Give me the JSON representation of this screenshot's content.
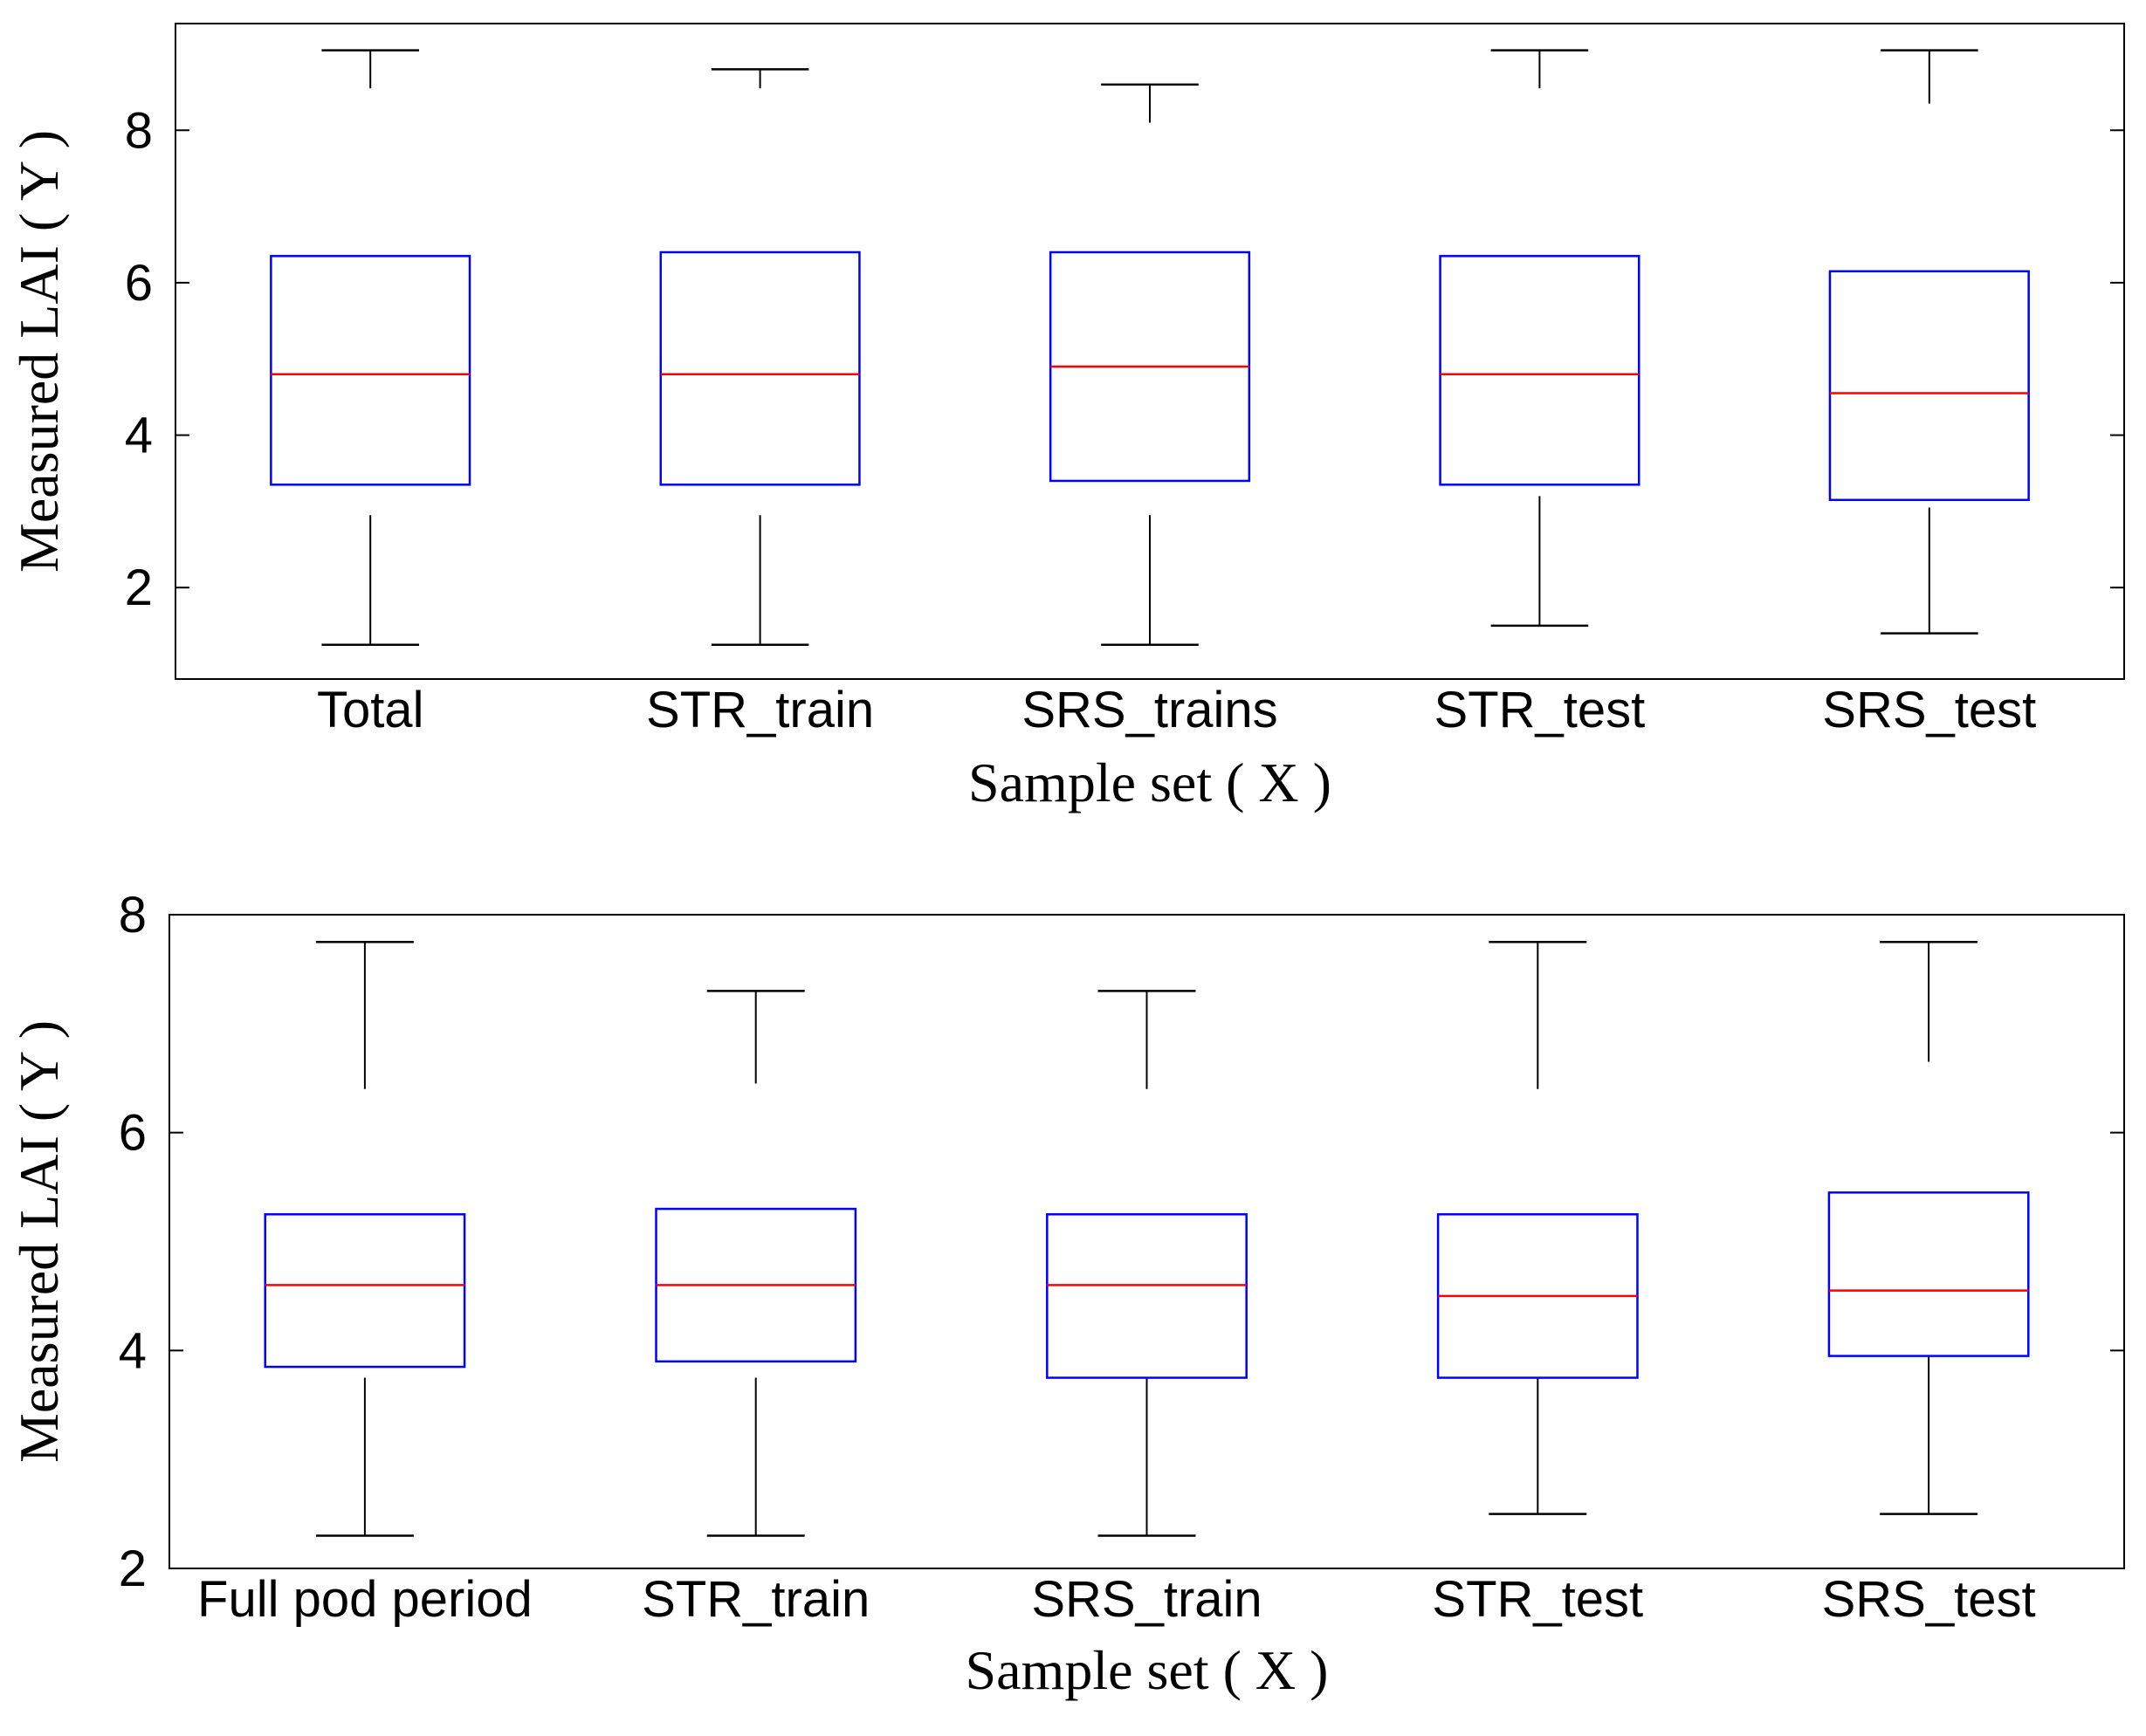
{
  "chart_data": [
    {
      "type": "boxplot",
      "xlabel": "Sample set ( X )",
      "ylabel": "Measured LAI ( Y )",
      "ylim": [
        0.8,
        9.4
      ],
      "yticks": [
        2,
        4,
        6,
        8
      ],
      "categories": [
        "Total",
        "STR_train",
        "SRS_trains",
        "STR_test",
        "SRS_test"
      ],
      "boxes": [
        {
          "min": 1.25,
          "q1": 3.35,
          "median": 4.8,
          "q3": 6.35,
          "max": 9.05,
          "whisker_low": 2.95,
          "whisker_high": 8.55
        },
        {
          "min": 1.25,
          "q1": 3.35,
          "median": 4.8,
          "q3": 6.4,
          "max": 8.8,
          "whisker_low": 2.95,
          "whisker_high": 8.55
        },
        {
          "min": 1.25,
          "q1": 3.4,
          "median": 4.9,
          "q3": 6.4,
          "max": 8.6,
          "whisker_low": 2.95,
          "whisker_high": 8.1
        },
        {
          "min": 1.5,
          "q1": 3.35,
          "median": 4.8,
          "q3": 6.35,
          "max": 9.05,
          "whisker_low": 3.2,
          "whisker_high": 8.55
        },
        {
          "min": 1.4,
          "q1": 3.15,
          "median": 4.55,
          "q3": 6.15,
          "max": 9.05,
          "whisker_low": 3.05,
          "whisker_high": 8.35
        }
      ]
    },
    {
      "type": "boxplot",
      "xlabel": "Sample set ( X )",
      "ylabel": "Measured LAI ( Y )",
      "ylim": [
        2,
        8
      ],
      "yticks": [
        2,
        4,
        6,
        8
      ],
      "categories": [
        "Full pod period",
        "STR_train",
        "SRS_train",
        "STR_test",
        "SRS_test"
      ],
      "boxes": [
        {
          "min": 2.3,
          "q1": 3.85,
          "median": 4.6,
          "q3": 5.25,
          "max": 7.75,
          "whisker_low": 3.75,
          "whisker_high": 6.4
        },
        {
          "min": 2.3,
          "q1": 3.9,
          "median": 4.6,
          "q3": 5.3,
          "max": 7.3,
          "whisker_low": 3.75,
          "whisker_high": 6.45
        },
        {
          "min": 2.3,
          "q1": 3.75,
          "median": 4.6,
          "q3": 5.25,
          "max": 7.3,
          "whisker_low": 3.75,
          "whisker_high": 6.4
        },
        {
          "min": 2.5,
          "q1": 3.75,
          "median": 4.5,
          "q3": 5.25,
          "max": 7.75,
          "whisker_low": 3.75,
          "whisker_high": 6.4
        },
        {
          "min": 2.5,
          "q1": 3.95,
          "median": 4.55,
          "q3": 5.45,
          "max": 7.75,
          "whisker_low": 3.95,
          "whisker_high": 6.65
        }
      ]
    }
  ]
}
